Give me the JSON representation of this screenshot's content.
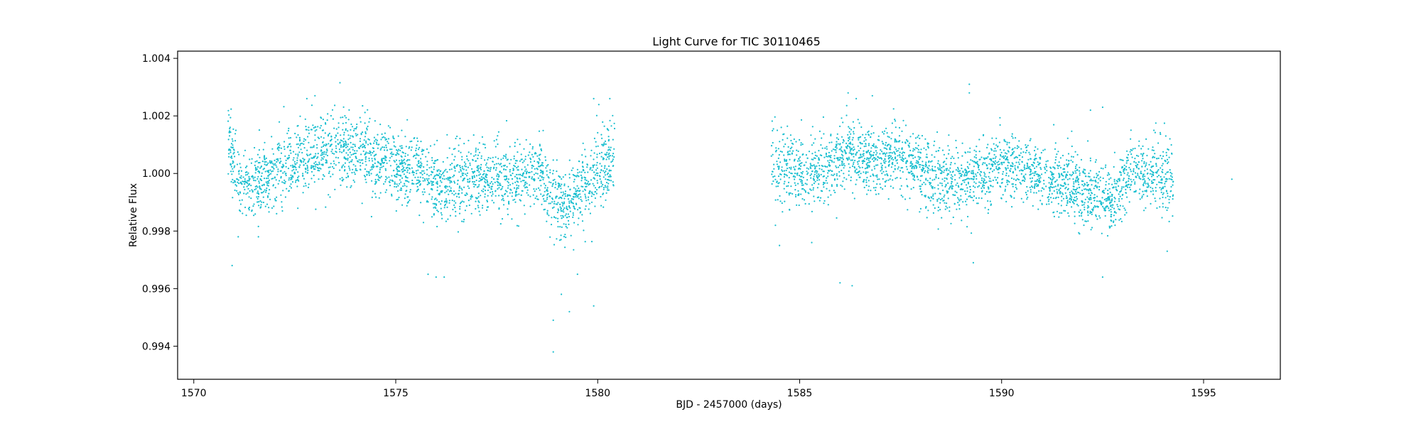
{
  "chart_data": {
    "type": "scatter",
    "title": "Light Curve for TIC 30110465",
    "xlabel": "BJD - 2457000 (days)",
    "ylabel": "Relative Flux",
    "xlim": [
      1569.6,
      1596.9
    ],
    "ylim": [
      0.99285,
      1.00425
    ],
    "xticks": [
      1570,
      1575,
      1580,
      1585,
      1590,
      1595
    ],
    "xtick_labels": [
      "1570",
      "1575",
      "1580",
      "1585",
      "1590",
      "1595"
    ],
    "yticks": [
      0.994,
      0.996,
      0.998,
      1.0,
      1.002,
      1.004
    ],
    "ytick_labels": [
      "0.994",
      "0.996",
      "0.998",
      "1.000",
      "1.002",
      "1.004"
    ],
    "grid": false,
    "legend": "none",
    "marker_color": "#17becf",
    "series": [
      {
        "segments": [
          {
            "x_start": 1570.85,
            "x_end": 1580.42
          },
          {
            "x_start": 1584.3,
            "x_end": 1594.25
          }
        ],
        "trend": [
          {
            "x": 1570.9,
            "y": 1.0009
          },
          {
            "x": 1571.2,
            "y": 0.9995
          },
          {
            "x": 1571.6,
            "y": 0.9997
          },
          {
            "x": 1572.2,
            "y": 1.0002
          },
          {
            "x": 1572.8,
            "y": 1.0006
          },
          {
            "x": 1573.5,
            "y": 1.0009
          },
          {
            "x": 1574.0,
            "y": 1.0008
          },
          {
            "x": 1574.8,
            "y": 1.0003
          },
          {
            "x": 1575.5,
            "y": 1.0001
          },
          {
            "x": 1576.2,
            "y": 0.9995
          },
          {
            "x": 1576.7,
            "y": 0.9998
          },
          {
            "x": 1577.3,
            "y": 0.9998
          },
          {
            "x": 1578.0,
            "y": 0.9999
          },
          {
            "x": 1578.5,
            "y": 1.0001
          },
          {
            "x": 1579.2,
            "y": 0.9988
          },
          {
            "x": 1579.8,
            "y": 0.9997
          },
          {
            "x": 1580.4,
            "y": 1.0006
          },
          {
            "x": 1584.3,
            "y": 1.0005
          },
          {
            "x": 1584.9,
            "y": 1.0
          },
          {
            "x": 1585.5,
            "y": 1.0
          },
          {
            "x": 1586.2,
            "y": 1.0008
          },
          {
            "x": 1586.8,
            "y": 1.0004
          },
          {
            "x": 1587.5,
            "y": 1.0005
          },
          {
            "x": 1588.2,
            "y": 1.0
          },
          {
            "x": 1588.8,
            "y": 0.9997
          },
          {
            "x": 1589.3,
            "y": 0.9998
          },
          {
            "x": 1589.8,
            "y": 1.0003
          },
          {
            "x": 1590.5,
            "y": 1.0002
          },
          {
            "x": 1591.2,
            "y": 0.9998
          },
          {
            "x": 1591.8,
            "y": 0.9995
          },
          {
            "x": 1592.4,
            "y": 0.9993
          },
          {
            "x": 1592.7,
            "y": 0.999
          },
          {
            "x": 1593.2,
            "y": 1.0
          },
          {
            "x": 1593.8,
            "y": 1.0
          },
          {
            "x": 1594.25,
            "y": 0.9998
          }
        ],
        "scatter_sigma": 0.0006,
        "outliers": [
          {
            "x": 1570.95,
            "y": 0.9968
          },
          {
            "x": 1571.1,
            "y": 0.9978
          },
          {
            "x": 1571.6,
            "y": 0.9978
          },
          {
            "x": 1573.0,
            "y": 1.0027
          },
          {
            "x": 1572.8,
            "y": 1.0026
          },
          {
            "x": 1574.4,
            "y": 0.9985
          },
          {
            "x": 1575.8,
            "y": 0.9965
          },
          {
            "x": 1576.0,
            "y": 0.9964
          },
          {
            "x": 1576.2,
            "y": 0.9964
          },
          {
            "x": 1578.9,
            "y": 0.9949
          },
          {
            "x": 1578.9,
            "y": 0.9938
          },
          {
            "x": 1579.1,
            "y": 0.9958
          },
          {
            "x": 1579.3,
            "y": 0.9952
          },
          {
            "x": 1579.5,
            "y": 0.9965
          },
          {
            "x": 1579.9,
            "y": 0.9954
          },
          {
            "x": 1579.9,
            "y": 1.0026
          },
          {
            "x": 1580.3,
            "y": 1.0026
          },
          {
            "x": 1584.4,
            "y": 0.9982
          },
          {
            "x": 1584.5,
            "y": 0.9975
          },
          {
            "x": 1585.3,
            "y": 0.9976
          },
          {
            "x": 1586.0,
            "y": 0.9962
          },
          {
            "x": 1586.3,
            "y": 0.9961
          },
          {
            "x": 1586.2,
            "y": 1.0028
          },
          {
            "x": 1586.4,
            "y": 1.0026
          },
          {
            "x": 1586.8,
            "y": 1.0027
          },
          {
            "x": 1589.2,
            "y": 1.0031
          },
          {
            "x": 1589.2,
            "y": 1.0028
          },
          {
            "x": 1589.3,
            "y": 0.9969
          },
          {
            "x": 1592.2,
            "y": 1.0022
          },
          {
            "x": 1592.5,
            "y": 1.0023
          },
          {
            "x": 1592.5,
            "y": 0.9964
          },
          {
            "x": 1594.1,
            "y": 0.9973
          },
          {
            "x": 1595.7,
            "y": 0.9998
          }
        ]
      }
    ]
  }
}
